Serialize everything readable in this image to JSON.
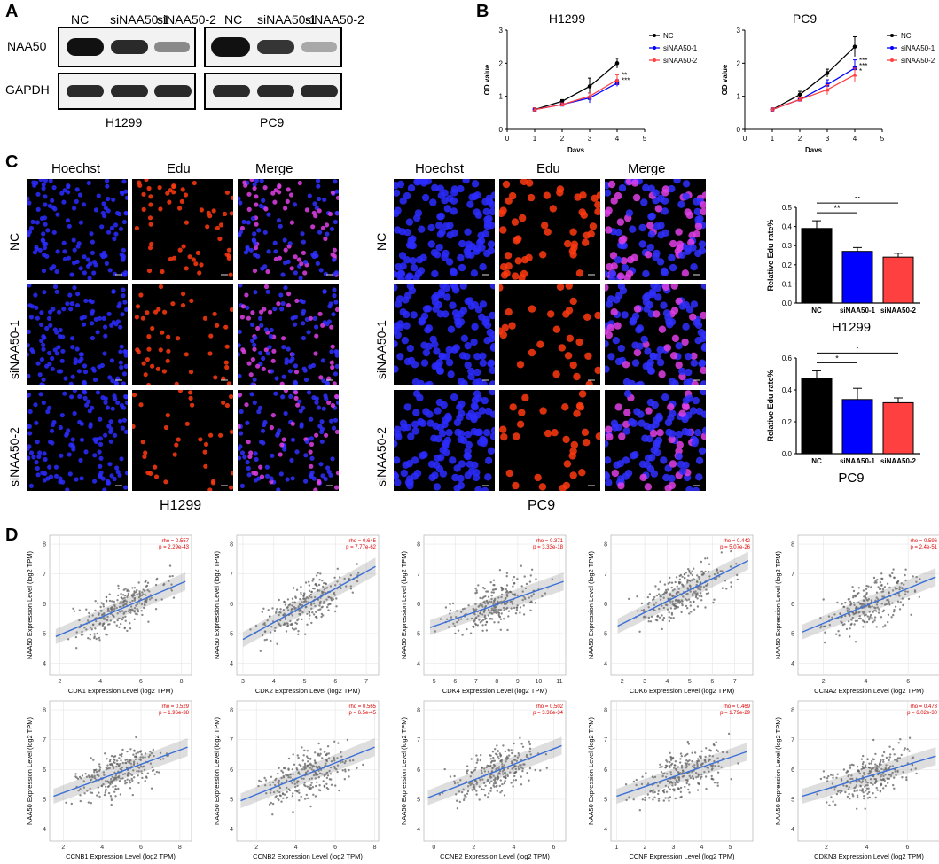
{
  "panels": {
    "A": "A",
    "B": "B",
    "C": "C",
    "D": "D"
  },
  "colors": {
    "nc": "#000000",
    "si1": "#0000ff",
    "si2": "#ff4040",
    "fit": "#3a6fd8",
    "rho": "#e00000",
    "dot": "#606060"
  },
  "blot": {
    "groups": [
      {
        "cell": "H1299",
        "lanes": [
          "NC",
          "siNAA50-1",
          "siNAA50-2"
        ]
      },
      {
        "cell": "PC9",
        "lanes": [
          "NC",
          "siNAA50-1",
          "siNAA50-2"
        ]
      }
    ],
    "rows": [
      "NAA50",
      "GAPDH"
    ],
    "naa50_intensity": [
      [
        1.0,
        0.75,
        0.35
      ],
      [
        1.0,
        0.65,
        0.25
      ]
    ],
    "gapdh_intensity": [
      [
        0.85,
        0.85,
        0.85
      ],
      [
        0.85,
        0.85,
        0.85
      ]
    ]
  },
  "edu": {
    "columns": [
      "Hoechst",
      "Edu",
      "Merge"
    ],
    "rows": [
      "NC",
      "siNAA50-1",
      "siNAA50-2"
    ],
    "cells": [
      "H1299",
      "PC9"
    ]
  },
  "chart_data": [
    {
      "type": "line",
      "title": "H1299",
      "xlabel": "Days",
      "ylabel": "OD value",
      "xlim": [
        0,
        5
      ],
      "ylim": [
        0,
        3
      ],
      "x": [
        1,
        2,
        3,
        4
      ],
      "xticks": [
        "0",
        "1",
        "2",
        "3",
        "4",
        "5"
      ],
      "yticks": [
        "0",
        "1",
        "2",
        "3"
      ],
      "series": [
        {
          "name": "NC",
          "values": [
            0.6,
            0.85,
            1.3,
            2.0
          ],
          "err": [
            0.05,
            0.05,
            0.25,
            0.15
          ]
        },
        {
          "name": "siNAA50-1",
          "values": [
            0.6,
            0.75,
            0.95,
            1.4
          ],
          "err": [
            0.05,
            0.05,
            0.15,
            0.1
          ]
        },
        {
          "name": "siNAA50-2",
          "values": [
            0.6,
            0.75,
            1.0,
            1.5
          ],
          "err": [
            0.05,
            0.05,
            0.1,
            0.15
          ]
        }
      ],
      "annotations": [
        "**",
        "***"
      ]
    },
    {
      "type": "line",
      "title": "PC9",
      "xlabel": "Days",
      "ylabel": "OD value",
      "xlim": [
        0,
        5
      ],
      "ylim": [
        0,
        3
      ],
      "x": [
        1,
        2,
        3,
        4
      ],
      "xticks": [
        "0",
        "1",
        "2",
        "3",
        "4",
        "5"
      ],
      "yticks": [
        "0",
        "1",
        "2",
        "3"
      ],
      "series": [
        {
          "name": "NC",
          "values": [
            0.6,
            1.05,
            1.7,
            2.5
          ],
          "err": [
            0.05,
            0.1,
            0.12,
            0.3
          ]
        },
        {
          "name": "siNAA50-1",
          "values": [
            0.6,
            0.9,
            1.35,
            1.85
          ],
          "err": [
            0.05,
            0.05,
            0.15,
            0.25
          ]
        },
        {
          "name": "siNAA50-2",
          "values": [
            0.6,
            0.9,
            1.2,
            1.65
          ],
          "err": [
            0.05,
            0.05,
            0.15,
            0.2
          ]
        }
      ],
      "annotations": [
        "***",
        "***",
        "*"
      ]
    },
    {
      "type": "bar",
      "title": "H1299",
      "ylabel": "Relative Edu rate%",
      "categories": [
        "NC",
        "siNAA50-1",
        "siNAA50-2"
      ],
      "values": [
        0.39,
        0.27,
        0.24
      ],
      "err": [
        0.04,
        0.02,
        0.02
      ],
      "ylim": [
        0,
        0.5
      ],
      "yticks": [
        "0.0",
        "0.1",
        "0.2",
        "0.3",
        "0.4",
        "0.5"
      ],
      "significance": [
        "**",
        "**"
      ]
    },
    {
      "type": "bar",
      "title": "PC9",
      "ylabel": "Relative Edu rate%",
      "categories": [
        "NC",
        "siNAA50-1",
        "siNAA50-2"
      ],
      "values": [
        0.47,
        0.34,
        0.32
      ],
      "err": [
        0.05,
        0.07,
        0.03
      ],
      "ylim": [
        0,
        0.6
      ],
      "yticks": [
        "0.0",
        "0.2",
        "0.4",
        "0.6"
      ],
      "significance": [
        "*",
        "*"
      ]
    },
    {
      "type": "scatter",
      "ylabel": "NAA50 Expression Level (log2 TPM)",
      "yticks": [
        "4",
        "5",
        "6",
        "7",
        "8"
      ],
      "plots": [
        {
          "xlabel": "CDK1 Expression Level (log2 TPM)",
          "xticks": [
            "2",
            "4",
            "6",
            "8"
          ],
          "xlim": [
            1.5,
            8.5
          ],
          "rho": "rho = 0.557",
          "p": "p = 2.29e-43",
          "fit": [
            [
              1.8,
              4.9
            ],
            [
              8.2,
              6.75
            ]
          ]
        },
        {
          "xlabel": "CDK2 Expression Level (log2 TPM)",
          "xticks": [
            "3",
            "4",
            "5",
            "6",
            "7"
          ],
          "xlim": [
            2.8,
            7.4
          ],
          "rho": "rho = 0.645",
          "p": "p = 7.77e-62",
          "fit": [
            [
              3.0,
              4.8
            ],
            [
              7.3,
              7.25
            ]
          ]
        },
        {
          "xlabel": "CDK4 Expression Level (log2 TPM)",
          "xticks": [
            "5",
            "6",
            "7",
            "8",
            "9",
            "10",
            "11"
          ],
          "xlim": [
            4.5,
            11.3
          ],
          "rho": "rho = 0.371",
          "p": "p = 3.33e-18",
          "fit": [
            [
              4.8,
              5.2
            ],
            [
              11.2,
              6.75
            ]
          ]
        },
        {
          "xlabel": "CDK6 Expression Level (log2 TPM)",
          "xticks": [
            "2",
            "3",
            "4",
            "5",
            "6",
            "7"
          ],
          "xlim": [
            1.5,
            7.8
          ],
          "rho": "rho = 0.442",
          "p": "p = 5.07e-26",
          "fit": [
            [
              1.8,
              5.25
            ],
            [
              7.6,
              7.45
            ]
          ]
        },
        {
          "xlabel": "CCNA2 Expression Level (log2 TPM)",
          "xticks": [
            "2",
            "4",
            "6"
          ],
          "xlim": [
            0.8,
            7.5
          ],
          "rho": "rho = 0.596",
          "p": "p = 2.4e-51",
          "fit": [
            [
              1.0,
              5.05
            ],
            [
              7.3,
              6.9
            ]
          ]
        },
        {
          "xlabel": "CCNB1 Expression Level (log2 TPM)",
          "xticks": [
            "2",
            "4",
            "6",
            "8"
          ],
          "xlim": [
            1.3,
            8.6
          ],
          "rho": "rho = 0.529",
          "p": "p = 1.96e-38",
          "fit": [
            [
              1.5,
              5.1
            ],
            [
              8.4,
              6.75
            ]
          ]
        },
        {
          "xlabel": "CCNB2 Expression Level (log2 TPM)",
          "xticks": [
            "2",
            "4",
            "6",
            "8"
          ],
          "xlim": [
            1.0,
            8.2
          ],
          "rho": "rho = 0.565",
          "p": "p = 6.5e-45",
          "fit": [
            [
              1.2,
              4.95
            ],
            [
              8.0,
              6.75
            ]
          ]
        },
        {
          "xlabel": "CCNE2 Expression Level (log2 TPM)",
          "xticks": [
            "0",
            "2",
            "4",
            "6"
          ],
          "xlim": [
            -0.5,
            6.6
          ],
          "rho": "rho = 0.502",
          "p": "p = 3.36e-34",
          "fit": [
            [
              -0.3,
              5.05
            ],
            [
              6.4,
              6.8
            ]
          ]
        },
        {
          "xlabel": "CCNF Expression Level (log2 TPM)",
          "xticks": [
            "1",
            "2",
            "3",
            "4",
            "5"
          ],
          "xlim": [
            0.8,
            5.8
          ],
          "rho": "rho = 0.469",
          "p": "p = 1.79e-29",
          "fit": [
            [
              1.0,
              5.1
            ],
            [
              5.6,
              6.6
            ]
          ]
        },
        {
          "xlabel": "CDKN3 Expression Level (log2 TPM)",
          "xticks": [
            "2",
            "4",
            "6"
          ],
          "xlim": [
            0.6,
            7.6
          ],
          "rho": "rho = 0.473",
          "p": "p = 6.02e-30",
          "fit": [
            [
              0.8,
              5.1
            ],
            [
              7.4,
              6.45
            ]
          ]
        }
      ]
    }
  ]
}
